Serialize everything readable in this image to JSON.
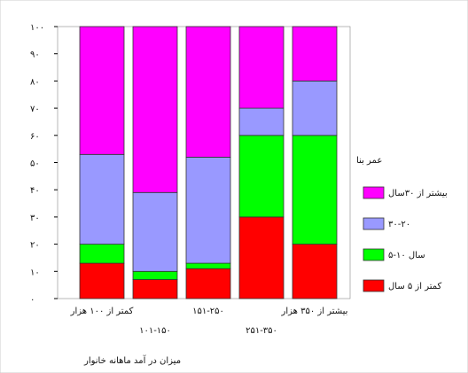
{
  "chart_data": {
    "type": "bar",
    "stacked": true,
    "percent": true,
    "title": "",
    "xlabel": "میزان در آمد ماهانه خانوار",
    "ylabel": "",
    "ylim": [
      0,
      100
    ],
    "yticks": [
      "۰",
      "۱۰",
      "۲۰",
      "۳۰",
      "۴۰",
      "۵۰",
      "۶۰",
      "۷۰",
      "۸۰",
      "۹۰",
      "۱۰۰"
    ],
    "categories": [
      "کمتر از ۱۰۰ هزار",
      "۱۰۱-۱۵۰",
      "۱۵۱-۲۵۰",
      "۲۵۱-۳۵۰",
      "بیشتر از ۳۵۰ هزار"
    ],
    "legend_title": "عمر بنا",
    "legend_position": "right",
    "grid": false,
    "series": [
      {
        "name": "کمتر از ۵ سال",
        "color": "#ff0000",
        "values": [
          13,
          7,
          11,
          30,
          20
        ]
      },
      {
        "name": "سال ۱۰-۵",
        "color": "#00ff00",
        "values": [
          7,
          3,
          2,
          30,
          40
        ]
      },
      {
        "name": "۳۰-۲۰",
        "color": "#9999ff",
        "values": [
          33,
          29,
          39,
          10,
          20
        ]
      },
      {
        "name": "بیشتر از ۳۰سال",
        "color": "#ff00ff",
        "values": [
          47,
          61,
          48,
          30,
          20
        ]
      }
    ]
  }
}
